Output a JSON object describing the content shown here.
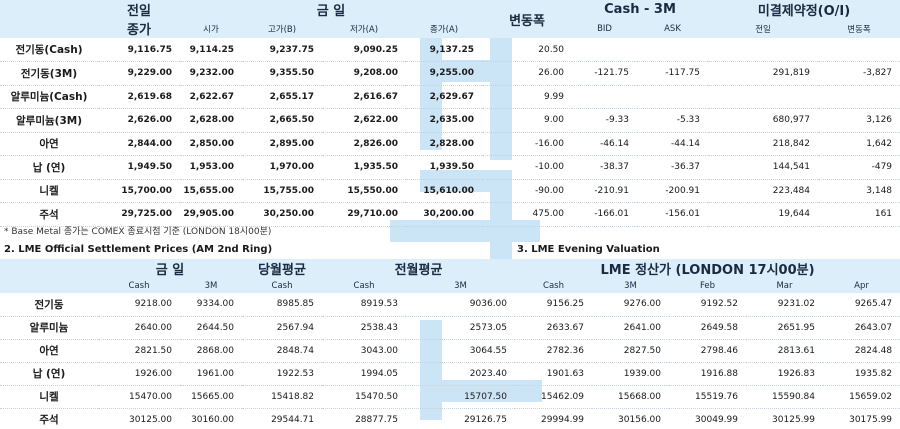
{
  "top": {
    "headers": {
      "prev_day": "전일",
      "prev_close": "종가",
      "today": "금 일",
      "open": "시가",
      "high": "고가(B)",
      "low": "저가(A)",
      "close": "종가(A)",
      "change": "변동폭",
      "cash3m": "Cash - 3M",
      "bid": "BID",
      "ask": "ASK",
      "oi": "미결제약정(O/I)",
      "oi_prev": "전일",
      "oi_change": "변동폭"
    },
    "rows": [
      {
        "label": "전기동(Cash)",
        "prev": "9,116.75",
        "open": "9,114.25",
        "high": "9,237.75",
        "low": "9,090.25",
        "close": "9,137.25",
        "chg": "20.50",
        "bid": "",
        "ask": "",
        "oi": "",
        "oichg": ""
      },
      {
        "label": "전기동(3M)",
        "prev": "9,229.00",
        "open": "9,232.00",
        "high": "9,355.50",
        "low": "9,208.00",
        "close": "9,255.00",
        "chg": "26.00",
        "bid": "-121.75",
        "ask": "-117.75",
        "oi": "291,819",
        "oichg": "-3,827"
      },
      {
        "label": "알루미늄(Cash)",
        "prev": "2,619.68",
        "open": "2,622.67",
        "high": "2,655.17",
        "low": "2,616.67",
        "close": "2,629.67",
        "chg": "9.99",
        "bid": "",
        "ask": "",
        "oi": "",
        "oichg": ""
      },
      {
        "label": "알루미늄(3M)",
        "prev": "2,626.00",
        "open": "2,628.00",
        "high": "2,665.50",
        "low": "2,622.00",
        "close": "2,635.00",
        "chg": "9.00",
        "bid": "-9.33",
        "ask": "-5.33",
        "oi": "680,977",
        "oichg": "3,126"
      },
      {
        "label": "아연",
        "prev": "2,844.00",
        "open": "2,850.00",
        "high": "2,895.00",
        "low": "2,826.00",
        "close": "2,828.00",
        "chg": "-16.00",
        "bid": "-46.14",
        "ask": "-44.14",
        "oi": "218,842",
        "oichg": "1,642"
      },
      {
        "label": "납 (연)",
        "prev": "1,949.50",
        "open": "1,953.00",
        "high": "1,970.00",
        "low": "1,935.50",
        "close": "1,939.50",
        "chg": "-10.00",
        "bid": "-38.37",
        "ask": "-36.37",
        "oi": "144,541",
        "oichg": "-479"
      },
      {
        "label": "니켈",
        "prev": "15,700.00",
        "open": "15,655.00",
        "high": "15,755.00",
        "low": "15,550.00",
        "close": "15,610.00",
        "chg": "-90.00",
        "bid": "-210.91",
        "ask": "-200.91",
        "oi": "223,484",
        "oichg": "3,148"
      },
      {
        "label": "주석",
        "prev": "29,725.00",
        "open": "29,905.00",
        "high": "30,250.00",
        "low": "29,710.00",
        "close": "30,200.00",
        "chg": "475.00",
        "bid": "-166.01",
        "ask": "-156.01",
        "oi": "19,644",
        "oichg": "161"
      }
    ],
    "footnote": "* Base Metal 종가는 COMEX 종료시점 기준 (LONDON 18시00분)"
  },
  "settlement": {
    "title": "2. LME Official Settlement Prices (AM 2nd Ring)",
    "headers": {
      "today": "금 일",
      "month_avg": "당월평균",
      "prev_month_avg": "전월평균",
      "cash": "Cash",
      "m3": "3M"
    },
    "rows": [
      {
        "label": "전기동",
        "c": "9218.00",
        "m": "9334.00",
        "ac": "8985.85",
        "pc": "8919.53",
        "pm": "9036.00"
      },
      {
        "label": "알루미늄",
        "c": "2640.00",
        "m": "2644.50",
        "ac": "2567.94",
        "pc": "2538.43",
        "pm": "2573.05"
      },
      {
        "label": "아연",
        "c": "2821.50",
        "m": "2868.00",
        "ac": "2848.74",
        "pc": "3043.00",
        "pm": "3064.55"
      },
      {
        "label": "납 (연)",
        "c": "1926.00",
        "m": "1961.00",
        "ac": "1922.53",
        "pc": "1994.05",
        "pm": "2023.40"
      },
      {
        "label": "니켈",
        "c": "15470.00",
        "m": "15665.00",
        "ac": "15418.82",
        "pc": "15470.50",
        "pm": "15707.50"
      },
      {
        "label": "주석",
        "c": "30125.00",
        "m": "30160.00",
        "ac": "29544.71",
        "pc": "28877.75",
        "pm": "29126.75"
      }
    ]
  },
  "evening": {
    "title": "3. LME Evening Valuation",
    "header": "LME 정산가 (LONDON 17시00분)",
    "cols": [
      "Cash",
      "3M",
      "Feb",
      "Mar",
      "Apr"
    ],
    "rows": [
      [
        "9156.25",
        "9276.00",
        "9192.52",
        "9231.02",
        "9265.47"
      ],
      [
        "2633.67",
        "2641.00",
        "2649.58",
        "2651.95",
        "2643.07"
      ],
      [
        "2782.36",
        "2827.50",
        "2798.46",
        "2813.61",
        "2824.48"
      ],
      [
        "1901.63",
        "1939.00",
        "1916.88",
        "1926.83",
        "1935.82"
      ],
      [
        "15462.09",
        "15668.00",
        "15519.76",
        "15590.84",
        "15659.02"
      ],
      [
        "29994.99",
        "30156.00",
        "30049.99",
        "30125.99",
        "30175.99"
      ]
    ]
  },
  "colors": {
    "header_bg": "#dbeefa",
    "watermark": "#4aa3e0"
  }
}
